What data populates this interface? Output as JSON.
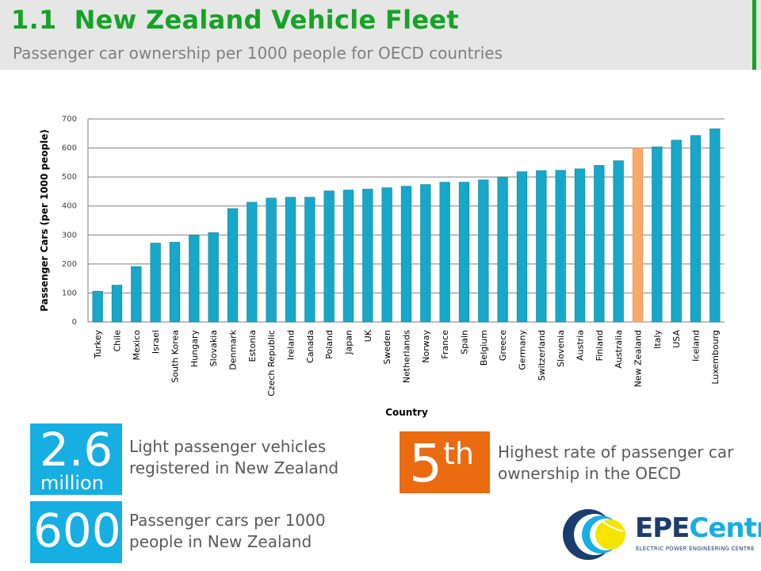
{
  "header": {
    "number": "1.1",
    "title": "New Zealand Vehicle Fleet",
    "subtitle": "Passenger car ownership per 1000 people for OECD countries"
  },
  "colors": {
    "title": "#15a325",
    "bar": "#17a8c9",
    "highlight": "#f8a96a",
    "stat_blue": "#17aee2",
    "stat_orange": "#ea6b10"
  },
  "chart_data": {
    "type": "bar",
    "xlabel": "Country",
    "ylabel": "Passenger Cars (per 1000 people)",
    "ylim": [
      0,
      700
    ],
    "yticks": [
      0,
      100,
      200,
      300,
      400,
      500,
      600,
      700
    ],
    "grid": true,
    "categories": [
      "Turkey",
      "Chile",
      "Mexico",
      "Israel",
      "South Korea",
      "Hungary",
      "Slovakia",
      "Denmark",
      "Estonia",
      "Czech Republic",
      "Ireland",
      "Canada",
      "Poland",
      "Japan",
      "UK",
      "Sweden",
      "Netherlands",
      "Norway",
      "France",
      "Spain",
      "Belgium",
      "Greece",
      "Germany",
      "Switzerland",
      "Slovenia",
      "Austria",
      "Finland",
      "Australia",
      "New Zealand",
      "Italy",
      "USA",
      "Iceland",
      "Luxembourg"
    ],
    "values": [
      106,
      127,
      191,
      272,
      275,
      299,
      308,
      391,
      413,
      427,
      430,
      430,
      452,
      455,
      458,
      463,
      468,
      474,
      482,
      482,
      490,
      500,
      518,
      522,
      523,
      528,
      540,
      556,
      600,
      604,
      627,
      643,
      666
    ],
    "highlight": "New Zealand"
  },
  "stats": [
    {
      "value": "2.6",
      "unit": "million",
      "text": "Light passenger vehicles registered in New Zealand"
    },
    {
      "value": "600",
      "text": "Passenger cars per 1000 people in New Zealand"
    },
    {
      "value": "5",
      "suffix": "th",
      "text": "Highest rate of passenger car ownership in the OECD"
    }
  ],
  "logo": {
    "main_a": "EPE",
    "main_b": "Centre",
    "sub": "ELECTRIC POWER ENGINEERING CENTRE",
    "icon": "epecentre-logo-icon"
  }
}
